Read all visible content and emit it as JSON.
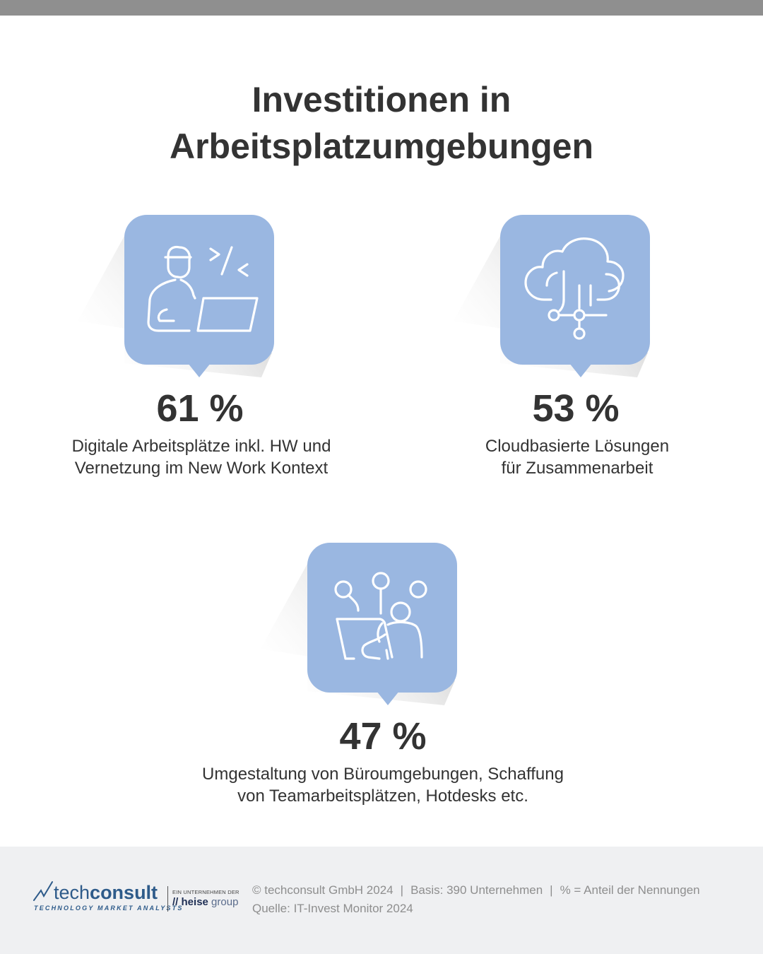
{
  "header": {
    "title_line1": "Investitionen in",
    "title_line2": "Arbeitsplatzumgebungen"
  },
  "chart_data": {
    "type": "table",
    "title": "Investitionen in Arbeitsplatzumgebungen",
    "unit": "%",
    "items": [
      {
        "value": 61,
        "value_text": "61 %",
        "label_line1": "Digitale Arbeitsplätze inkl. HW und",
        "label_line2": "Vernetzung im New Work Kontext",
        "icon": "developer-laptop-icon"
      },
      {
        "value": 53,
        "value_text": "53 %",
        "label_line1": "Cloudbasierte Lösungen",
        "label_line2": "für Zusammenarbeit",
        "icon": "cloud-network-icon"
      },
      {
        "value": 47,
        "value_text": "47 %",
        "label_line1": "Umgestaltung von Büroumgebungen, Schaffung",
        "label_line2": "von Teamarbeitsplätzen, Hotdesks etc.",
        "icon": "team-workspace-icon"
      }
    ]
  },
  "colors": {
    "bubble": "#9ab7e1",
    "icon_stroke": "#ffffff",
    "text": "#333333",
    "footer_bg": "#eff0f2",
    "brand": "#2e5b8a"
  },
  "footer": {
    "logo_part1": "tech",
    "logo_part2": "consult",
    "logo_tagline": "TECHNOLOGY MARKET ANALYSTS",
    "heise_pre": "EIN UNTERNEHMEN DER",
    "heise_name": "heise",
    "heise_group": "group",
    "copyright": "© techconsult GmbH 2024",
    "basis": "Basis: 390 Unternehmen",
    "percent_note": "% = Anteil der Nennungen",
    "source": "Quelle: IT-Invest Monitor 2024"
  }
}
